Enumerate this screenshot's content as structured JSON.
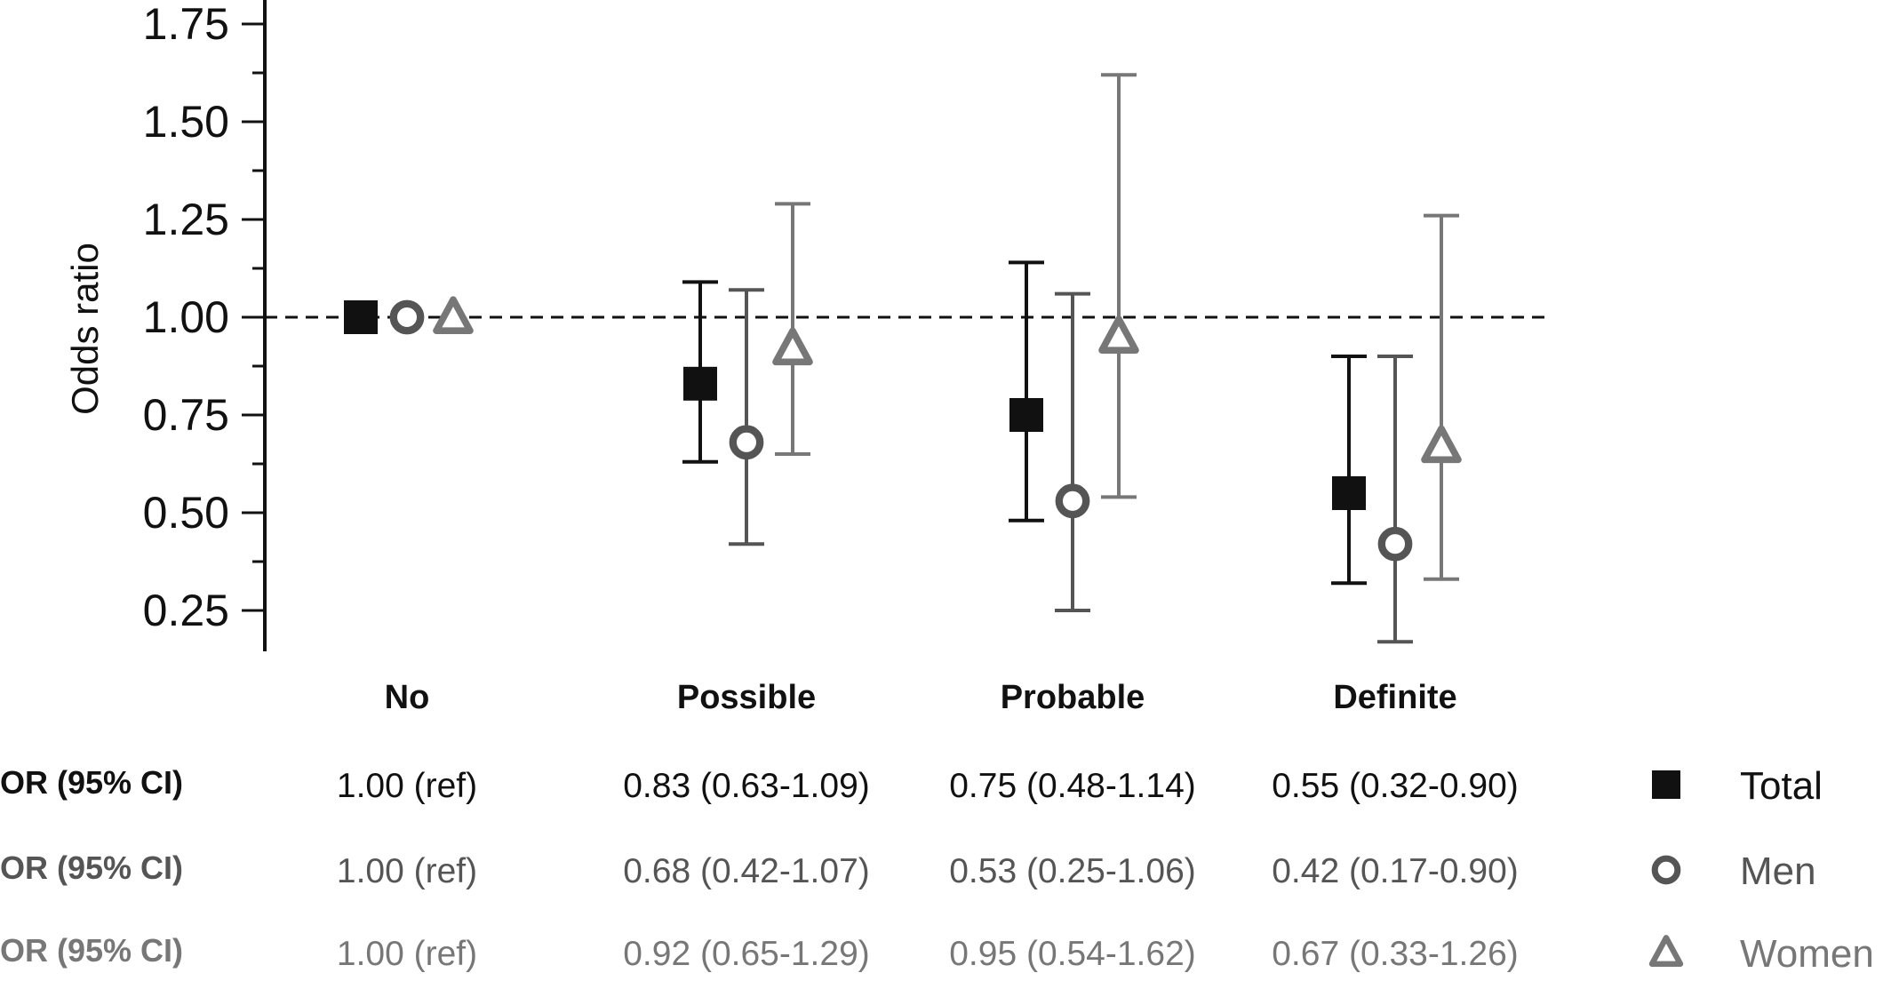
{
  "chart_data": {
    "type": "scatter",
    "subtype": "forest-plot-with-error-bars",
    "ylabel": "Odds ratio",
    "xlabel": "",
    "ylim": [
      0.15,
      1.8
    ],
    "yticks": [
      0.25,
      0.5,
      0.75,
      1.0,
      1.25,
      1.5,
      1.75
    ],
    "ytick_labels": [
      "0.25",
      "0.50",
      "0.75",
      "1.00",
      "1.25",
      "1.50",
      "1.75"
    ],
    "reference_line": 1.0,
    "categories": [
      "No",
      "Possible",
      "Probable",
      "Definite"
    ],
    "series": [
      {
        "name": "Total",
        "marker": "square",
        "color": "#111111",
        "error_color": "#111111",
        "values": [
          1.0,
          0.83,
          0.75,
          0.55
        ],
        "lower": [
          null,
          0.63,
          0.48,
          0.32
        ],
        "upper": [
          null,
          1.09,
          1.14,
          0.9
        ],
        "table_label": "OR (95% CI)",
        "table": [
          "1.00 (ref)",
          "0.83 (0.63-1.09)",
          "0.75 (0.48-1.14)",
          "0.55 (0.32-0.90)"
        ]
      },
      {
        "name": "Men",
        "marker": "circle",
        "color": "#555555",
        "error_color": "#555555",
        "values": [
          1.0,
          0.68,
          0.53,
          0.42
        ],
        "lower": [
          null,
          0.42,
          0.25,
          0.17
        ],
        "upper": [
          null,
          1.07,
          1.06,
          0.9
        ],
        "table_label": "OR (95% CI)",
        "table": [
          "1.00 (ref)",
          "0.68 (0.42-1.07)",
          "0.53 (0.25-1.06)",
          "0.42 (0.17-0.90)"
        ]
      },
      {
        "name": "Women",
        "marker": "triangle",
        "color": "#777777",
        "error_color": "#777777",
        "values": [
          1.0,
          0.92,
          0.95,
          0.67
        ],
        "lower": [
          null,
          0.65,
          0.54,
          0.33
        ],
        "upper": [
          null,
          1.29,
          1.62,
          1.26
        ],
        "table_label": "OR (95% CI)",
        "table": [
          "1.00 (ref)",
          "0.92 (0.65-1.29)",
          "0.95 (0.54-1.62)",
          "0.67 (0.33-1.26)"
        ]
      }
    ],
    "legend_position": "bottom-right"
  }
}
